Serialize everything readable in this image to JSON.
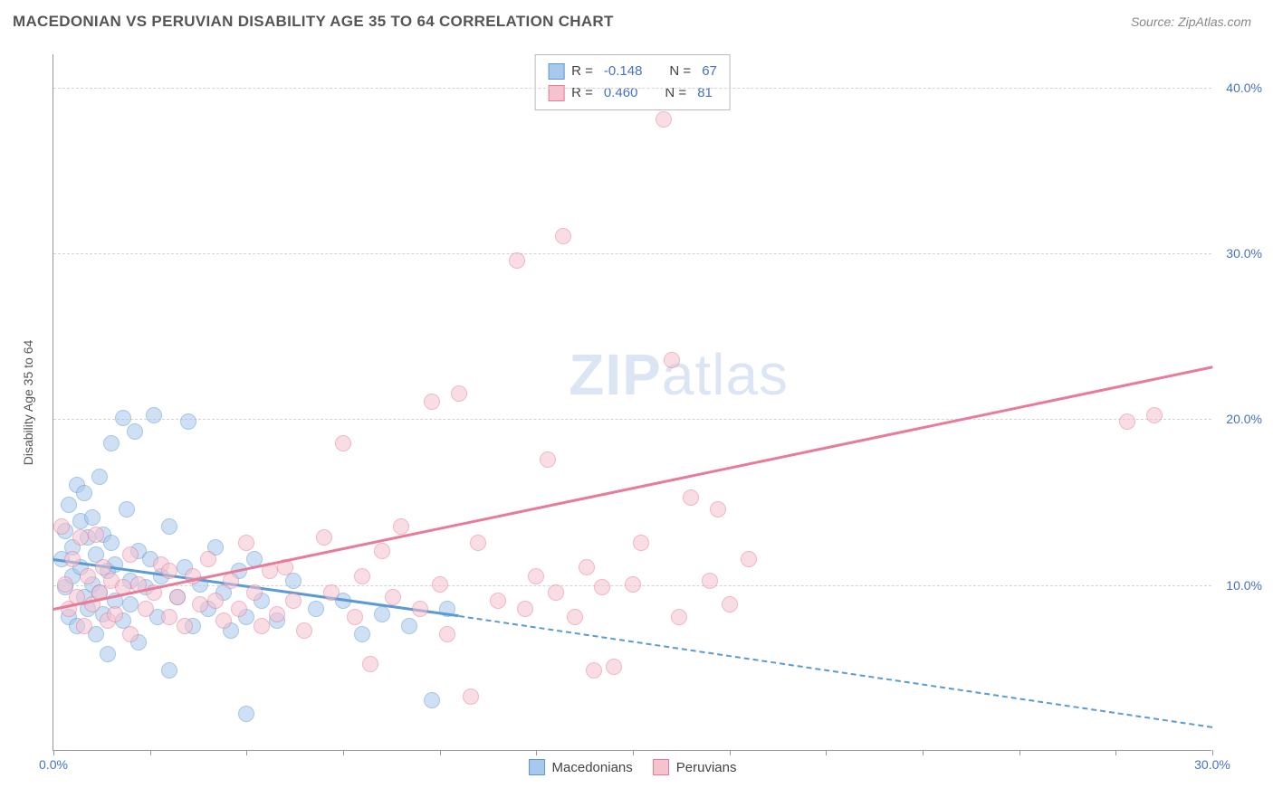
{
  "title": "MACEDONIAN VS PERUVIAN DISABILITY AGE 35 TO 64 CORRELATION CHART",
  "source": "Source: ZipAtlas.com",
  "watermark_zip": "ZIP",
  "watermark_atlas": "atlas",
  "chart": {
    "type": "scatter",
    "ylabel": "Disability Age 35 to 64",
    "xlim": [
      0,
      30
    ],
    "ylim": [
      0,
      42
    ],
    "xticks": [
      0,
      2.5,
      5,
      7.5,
      10,
      12.5,
      15,
      17.5,
      20,
      22.5,
      25,
      27.5,
      30
    ],
    "xtick_labels": {
      "0": "0.0%",
      "30": "30.0%"
    },
    "yticks": [
      10,
      20,
      30,
      40
    ],
    "ytick_labels": {
      "10": "10.0%",
      "20": "20.0%",
      "30": "30.0%",
      "40": "40.0%"
    },
    "grid_color": "#d4d4d4",
    "axis_color": "#999999",
    "background_color": "#ffffff",
    "tick_label_color": "#4472c4",
    "point_radius": 9,
    "point_opacity": 0.55,
    "series": [
      {
        "name": "Macedonians",
        "fill": "#a8c8ec",
        "stroke": "#5b9bd5",
        "r_label": "R =",
        "r_value": "-0.148",
        "n_label": "N =",
        "n_value": "67",
        "trend": {
          "x1": 0,
          "y1": 11.6,
          "x2": 10.5,
          "y2": 8.2,
          "solid": true
        },
        "trend_ext": {
          "x1": 10.5,
          "y1": 8.2,
          "x2": 30,
          "y2": 1.5,
          "dashed": true
        },
        "points": [
          [
            0.2,
            11.5
          ],
          [
            0.3,
            13.2
          ],
          [
            0.3,
            9.8
          ],
          [
            0.4,
            14.8
          ],
          [
            0.4,
            8.0
          ],
          [
            0.5,
            12.2
          ],
          [
            0.5,
            10.5
          ],
          [
            0.6,
            16.0
          ],
          [
            0.6,
            7.5
          ],
          [
            0.7,
            11.0
          ],
          [
            0.7,
            13.8
          ],
          [
            0.8,
            9.2
          ],
          [
            0.8,
            15.5
          ],
          [
            0.9,
            8.5
          ],
          [
            0.9,
            12.8
          ],
          [
            1.0,
            10.0
          ],
          [
            1.0,
            14.0
          ],
          [
            1.1,
            7.0
          ],
          [
            1.1,
            11.8
          ],
          [
            1.2,
            9.5
          ],
          [
            1.2,
            16.5
          ],
          [
            1.3,
            8.2
          ],
          [
            1.3,
            13.0
          ],
          [
            1.4,
            10.8
          ],
          [
            1.4,
            5.8
          ],
          [
            1.5,
            12.5
          ],
          [
            1.5,
            18.5
          ],
          [
            1.6,
            9.0
          ],
          [
            1.6,
            11.2
          ],
          [
            1.8,
            20.0
          ],
          [
            1.8,
            7.8
          ],
          [
            1.9,
            14.5
          ],
          [
            2.0,
            10.2
          ],
          [
            2.0,
            8.8
          ],
          [
            2.1,
            19.2
          ],
          [
            2.2,
            12.0
          ],
          [
            2.2,
            6.5
          ],
          [
            2.4,
            9.8
          ],
          [
            2.5,
            11.5
          ],
          [
            2.6,
            20.2
          ],
          [
            2.7,
            8.0
          ],
          [
            2.8,
            10.5
          ],
          [
            3.0,
            13.5
          ],
          [
            3.0,
            4.8
          ],
          [
            3.2,
            9.2
          ],
          [
            3.4,
            11.0
          ],
          [
            3.5,
            19.8
          ],
          [
            3.6,
            7.5
          ],
          [
            3.8,
            10.0
          ],
          [
            4.0,
            8.5
          ],
          [
            4.2,
            12.2
          ],
          [
            4.4,
            9.5
          ],
          [
            4.6,
            7.2
          ],
          [
            4.8,
            10.8
          ],
          [
            5.0,
            8.0
          ],
          [
            5.0,
            2.2
          ],
          [
            5.2,
            11.5
          ],
          [
            5.4,
            9.0
          ],
          [
            5.8,
            7.8
          ],
          [
            6.2,
            10.2
          ],
          [
            6.8,
            8.5
          ],
          [
            7.5,
            9.0
          ],
          [
            8.0,
            7.0
          ],
          [
            8.5,
            8.2
          ],
          [
            9.2,
            7.5
          ],
          [
            9.8,
            3.0
          ],
          [
            10.2,
            8.5
          ]
        ]
      },
      {
        "name": "Peruvians",
        "fill": "#f5c2ce",
        "stroke": "#e87b9a",
        "r_label": "R =",
        "r_value": "0.460",
        "n_label": "N =",
        "n_value": "81",
        "trend": {
          "x1": 0,
          "y1": 8.6,
          "x2": 30,
          "y2": 23.2,
          "solid": true
        },
        "points": [
          [
            0.2,
            13.5
          ],
          [
            0.3,
            10.0
          ],
          [
            0.4,
            8.5
          ],
          [
            0.5,
            11.5
          ],
          [
            0.6,
            9.2
          ],
          [
            0.7,
            12.8
          ],
          [
            0.8,
            7.5
          ],
          [
            0.9,
            10.5
          ],
          [
            1.0,
            8.8
          ],
          [
            1.1,
            13.0
          ],
          [
            1.2,
            9.5
          ],
          [
            1.3,
            11.0
          ],
          [
            1.4,
            7.8
          ],
          [
            1.5,
            10.2
          ],
          [
            1.6,
            8.2
          ],
          [
            1.8,
            9.8
          ],
          [
            2.0,
            11.8
          ],
          [
            2.0,
            7.0
          ],
          [
            2.2,
            10.0
          ],
          [
            2.4,
            8.5
          ],
          [
            2.6,
            9.5
          ],
          [
            2.8,
            11.2
          ],
          [
            3.0,
            8.0
          ],
          [
            3.0,
            10.8
          ],
          [
            3.2,
            9.2
          ],
          [
            3.4,
            7.5
          ],
          [
            3.6,
            10.5
          ],
          [
            3.8,
            8.8
          ],
          [
            4.0,
            11.5
          ],
          [
            4.2,
            9.0
          ],
          [
            4.4,
            7.8
          ],
          [
            4.6,
            10.2
          ],
          [
            4.8,
            8.5
          ],
          [
            5.0,
            12.5
          ],
          [
            5.2,
            9.5
          ],
          [
            5.4,
            7.5
          ],
          [
            5.6,
            10.8
          ],
          [
            5.8,
            8.2
          ],
          [
            6.0,
            11.0
          ],
          [
            6.2,
            9.0
          ],
          [
            6.5,
            7.2
          ],
          [
            7.0,
            12.8
          ],
          [
            7.2,
            9.5
          ],
          [
            7.5,
            18.5
          ],
          [
            7.8,
            8.0
          ],
          [
            8.0,
            10.5
          ],
          [
            8.2,
            5.2
          ],
          [
            8.5,
            12.0
          ],
          [
            8.8,
            9.2
          ],
          [
            9.0,
            13.5
          ],
          [
            9.5,
            8.5
          ],
          [
            9.8,
            21.0
          ],
          [
            10.0,
            10.0
          ],
          [
            10.2,
            7.0
          ],
          [
            10.5,
            21.5
          ],
          [
            10.8,
            3.2
          ],
          [
            11.0,
            12.5
          ],
          [
            11.5,
            9.0
          ],
          [
            12.0,
            29.5
          ],
          [
            12.2,
            8.5
          ],
          [
            12.5,
            10.5
          ],
          [
            12.8,
            17.5
          ],
          [
            13.0,
            9.5
          ],
          [
            13.2,
            31.0
          ],
          [
            13.5,
            8.0
          ],
          [
            13.8,
            11.0
          ],
          [
            14.2,
            9.8
          ],
          [
            14.5,
            5.0
          ],
          [
            15.0,
            10.0
          ],
          [
            15.2,
            12.5
          ],
          [
            15.8,
            38.0
          ],
          [
            16.0,
            23.5
          ],
          [
            16.2,
            8.0
          ],
          [
            16.5,
            15.2
          ],
          [
            17.0,
            10.2
          ],
          [
            17.2,
            14.5
          ],
          [
            17.5,
            8.8
          ],
          [
            18.0,
            11.5
          ],
          [
            27.8,
            19.8
          ],
          [
            28.5,
            20.2
          ],
          [
            14.0,
            4.8
          ]
        ]
      }
    ]
  }
}
